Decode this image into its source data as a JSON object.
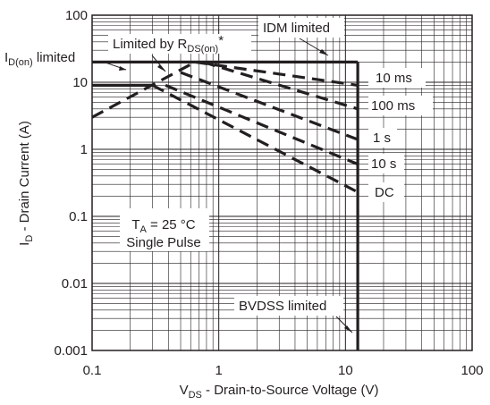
{
  "chart_data": {
    "type": "line",
    "title": "",
    "scale": {
      "x": "log",
      "y": "log"
    },
    "xlim": [
      0.1,
      100
    ],
    "ylim": [
      0.001,
      100
    ],
    "grid": true,
    "xlabel": {
      "main": "V",
      "sub": "DS",
      "rest": " - Drain-to-Source Voltage (V)"
    },
    "ylabel": {
      "main": "I",
      "sub": "D",
      "rest": " - Drain Current (A)"
    },
    "x_ticks": [
      {
        "v": 0.1,
        "label": "0.1"
      },
      {
        "v": 1,
        "label": "1"
      },
      {
        "v": 10,
        "label": "10"
      },
      {
        "v": 100,
        "label": "100"
      }
    ],
    "y_ticks": [
      {
        "v": 100,
        "label": "100"
      },
      {
        "v": 10,
        "label": "10"
      },
      {
        "v": 1,
        "label": "1"
      },
      {
        "v": 0.1,
        "label": "0.1"
      },
      {
        "v": 0.01,
        "label": "0.01"
      },
      {
        "v": 0.001,
        "label": "0.001"
      }
    ],
    "limit_lines": [
      {
        "name": "ID(on) limited",
        "style": "solid",
        "points": [
          [
            0.1,
            20
          ],
          [
            0.65,
            20
          ]
        ]
      },
      {
        "name": "IDM limited",
        "style": "solid",
        "points": [
          [
            0.65,
            20
          ],
          [
            12.5,
            20
          ]
        ]
      },
      {
        "name": "BVDSS limited",
        "style": "solid",
        "points": [
          [
            12.5,
            20
          ],
          [
            12.5,
            0.001
          ]
        ]
      },
      {
        "name": "Limited by RDS(on)*",
        "style": "dashed",
        "points": [
          [
            0.1,
            3
          ],
          [
            0.65,
            20
          ]
        ]
      }
    ],
    "soa_lines": [
      {
        "name": "10 ms",
        "style": "dashed",
        "points": [
          [
            0.65,
            20
          ],
          [
            12.5,
            9
          ]
        ]
      },
      {
        "name": "100 ms",
        "style": "dashed",
        "points": [
          [
            0.75,
            20
          ],
          [
            12.5,
            4
          ]
        ]
      },
      {
        "name": "1 s",
        "style": "dashed",
        "points": [
          [
            0.5,
            14
          ],
          [
            12.5,
            1.4
          ]
        ]
      },
      {
        "name": "10 s",
        "style": "dashed",
        "points": [
          [
            0.38,
            9
          ],
          [
            12.5,
            0.6
          ]
        ]
      },
      {
        "name": "DC",
        "style": "solid-then-dashed",
        "points": [
          [
            0.1,
            9
          ],
          [
            0.3,
            9
          ],
          [
            12.5,
            0.23
          ]
        ]
      }
    ],
    "annotations": {
      "idon": {
        "main": "I",
        "sub": "D(on)",
        "rest": " limited"
      },
      "rds": {
        "pre": "Limited by R",
        "sub": "DS(on)",
        "post": "*"
      },
      "idm": "IDM limited",
      "bvdss": "BVDSS limited",
      "conditions": {
        "ta_main": "T",
        "ta_sub": "A",
        "ta_rest": " = 25 °C",
        "pulse": "Single Pulse"
      },
      "curve_labels": [
        "10 ms",
        "100 ms",
        "1 s",
        "10 s",
        "DC"
      ]
    }
  }
}
